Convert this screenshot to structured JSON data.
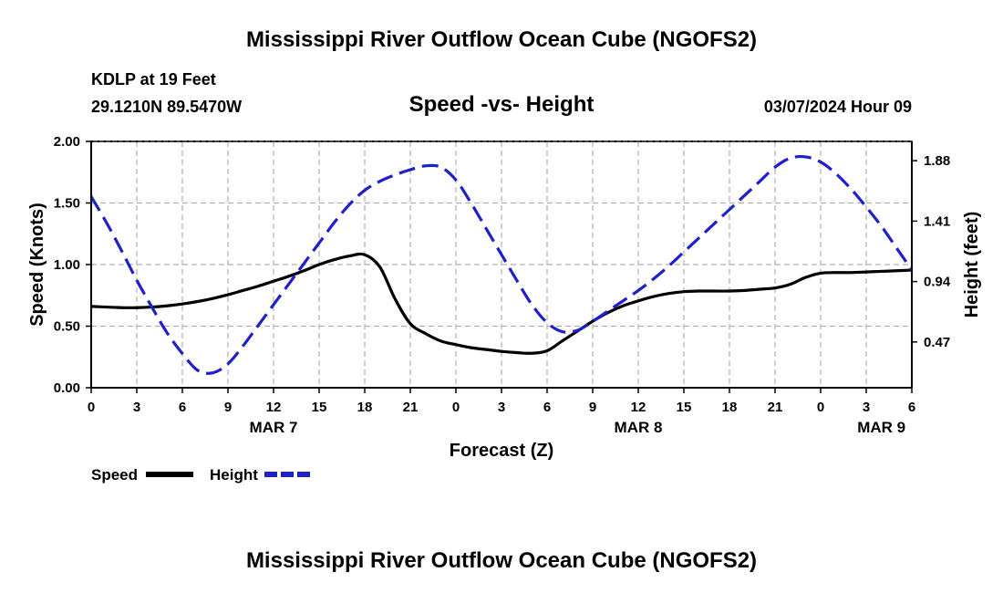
{
  "header": {
    "title": "Mississippi River Outflow Ocean Cube (NGOFS2)",
    "station": "KDLP at 19 Feet",
    "coords": "29.1210N  89.5470W",
    "subtitle": "Speed -vs- Height",
    "datetime": "03/07/2024 Hour 09"
  },
  "footer": {
    "title": "Mississippi River Outflow Ocean Cube (NGOFS2)"
  },
  "colors": {
    "speed": "#000000",
    "height": "#1f1fcc",
    "grid": "#b0b0b0"
  },
  "chart_data": {
    "type": "line",
    "title": "Speed -vs- Height",
    "xlabel": "Forecast (Z)",
    "ylabel": "Speed (Knots)",
    "ylabel_right": "Height (feet)",
    "xlim": [
      0,
      54
    ],
    "ylim": [
      0,
      2.0
    ],
    "ylim_right": [
      0.114,
      2.03
    ],
    "x_ticks": [
      0,
      3,
      6,
      9,
      12,
      15,
      18,
      21,
      24,
      27,
      30,
      33,
      36,
      39,
      42,
      45,
      48,
      51,
      54
    ],
    "x_tick_labels": [
      "0",
      "3",
      "6",
      "9",
      "12",
      "15",
      "18",
      "21",
      "0",
      "3",
      "6",
      "9",
      "12",
      "15",
      "18",
      "21",
      "0",
      "3",
      "6"
    ],
    "date_labels": [
      {
        "x": 12,
        "label": "MAR 7"
      },
      {
        "x": 36,
        "label": "MAR 8"
      },
      {
        "x": 52,
        "label": "MAR 9"
      }
    ],
    "y_ticks": [
      0,
      0.5,
      1.0,
      1.5,
      2.0
    ],
    "y_tick_labels": [
      "0.00",
      "0.50",
      "1.00",
      "1.50",
      "2.00"
    ],
    "y_ticks_right": [
      0.47,
      0.94,
      1.41,
      1.88
    ],
    "y_tick_labels_right": [
      "0.47",
      "0.94",
      "1.41",
      "1.88"
    ],
    "grid": true,
    "legend": [
      {
        "label": "Speed",
        "style": "solid"
      },
      {
        "label": "Height",
        "style": "dashed"
      }
    ],
    "series": [
      {
        "name": "Speed",
        "axis": "left",
        "style": "solid",
        "x": [
          0,
          1,
          2,
          3,
          4,
          5,
          6,
          7,
          8,
          9,
          10,
          11,
          12,
          13,
          14,
          15,
          16,
          17,
          18,
          19,
          20,
          21,
          22,
          23,
          24,
          25,
          26,
          27,
          28,
          29,
          30,
          31,
          32,
          33,
          34,
          35,
          36,
          37,
          38,
          39,
          40,
          41,
          42,
          43,
          44,
          45,
          46,
          47,
          48,
          49,
          50,
          51,
          52,
          53,
          54
        ],
        "values": [
          0.66,
          0.655,
          0.65,
          0.65,
          0.655,
          0.665,
          0.68,
          0.7,
          0.725,
          0.755,
          0.79,
          0.825,
          0.865,
          0.905,
          0.95,
          1.0,
          1.04,
          1.07,
          1.08,
          0.98,
          0.72,
          0.52,
          0.44,
          0.38,
          0.35,
          0.325,
          0.31,
          0.295,
          0.285,
          0.28,
          0.3,
          0.38,
          0.46,
          0.54,
          0.61,
          0.665,
          0.705,
          0.74,
          0.765,
          0.78,
          0.785,
          0.785,
          0.785,
          0.79,
          0.8,
          0.81,
          0.84,
          0.895,
          0.93,
          0.935,
          0.935,
          0.94,
          0.945,
          0.95,
          0.955
        ]
      },
      {
        "name": "Height",
        "axis": "right",
        "style": "dashed",
        "x": [
          0,
          1,
          2,
          3,
          4,
          5,
          6,
          7,
          8,
          9,
          10,
          11,
          12,
          13,
          14,
          15,
          16,
          17,
          18,
          19,
          20,
          21,
          22,
          23,
          24,
          25,
          26,
          27,
          28,
          29,
          30,
          31,
          32,
          33,
          34,
          35,
          36,
          37,
          38,
          39,
          40,
          41,
          42,
          43,
          44,
          45,
          46,
          47,
          48,
          49,
          50,
          51,
          52,
          53,
          54
        ],
        "values": [
          1.6,
          1.4,
          1.18,
          0.95,
          0.74,
          0.54,
          0.38,
          0.25,
          0.23,
          0.3,
          0.44,
          0.6,
          0.76,
          0.92,
          1.08,
          1.24,
          1.4,
          1.54,
          1.65,
          1.72,
          1.77,
          1.81,
          1.84,
          1.83,
          1.73,
          1.55,
          1.35,
          1.15,
          0.95,
          0.76,
          0.62,
          0.55,
          0.56,
          0.63,
          0.71,
          0.79,
          0.87,
          0.96,
          1.06,
          1.17,
          1.28,
          1.39,
          1.5,
          1.61,
          1.72,
          1.83,
          1.9,
          1.91,
          1.87,
          1.78,
          1.66,
          1.52,
          1.37,
          1.2,
          1.03
        ]
      }
    ]
  }
}
